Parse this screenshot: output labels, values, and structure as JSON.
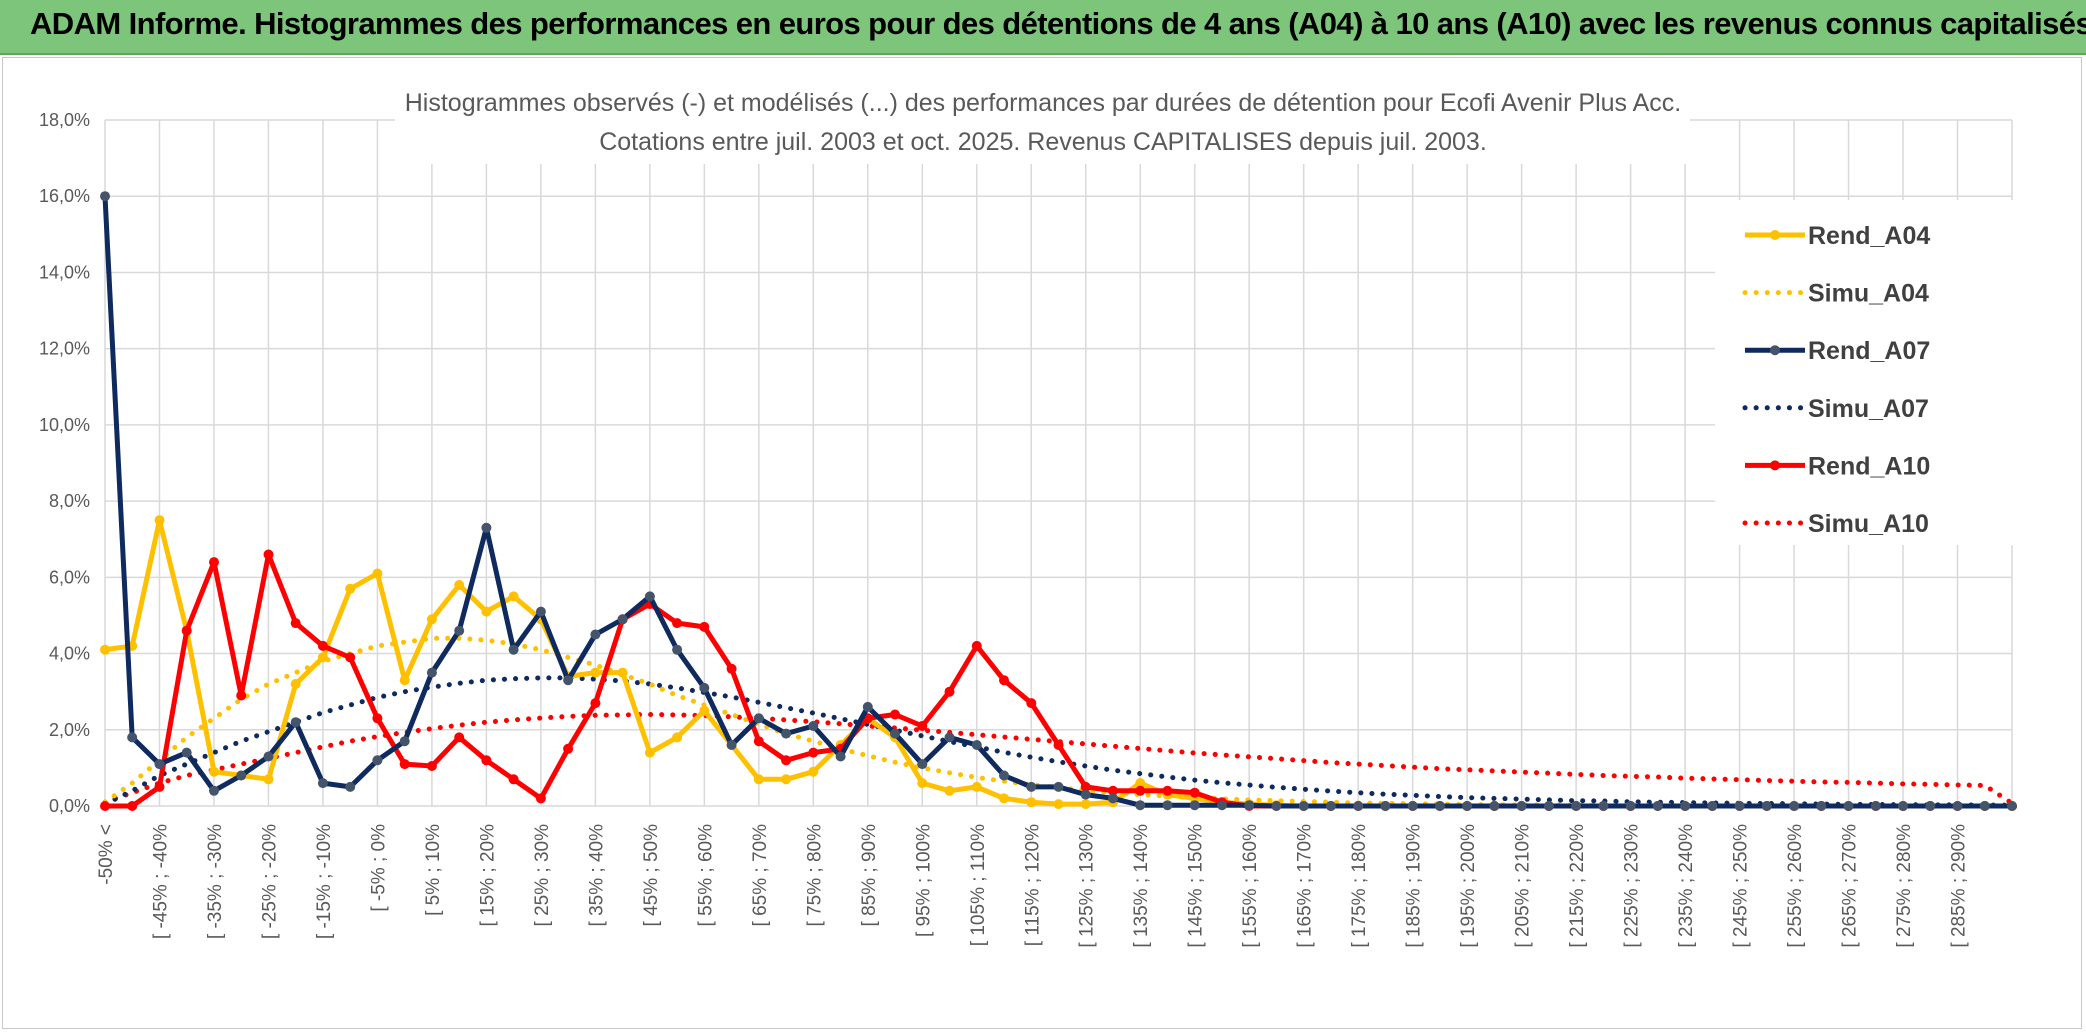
{
  "banner": {
    "title": "ADAM Informe. Histogrammes des performances en euros pour des détentions de 4 ans (A04) à 10 ans (A10) avec les revenus connus capitalisés"
  },
  "colors": {
    "banner_bg": "#7cc57a",
    "A04": "#ffc000",
    "A07": "#0e2a5f",
    "A07_marker": "#44546a",
    "A10": "#ff0000",
    "grid": "#d9d9d9"
  },
  "chart_data": {
    "type": "line",
    "title": "Histogrammes observés (-) et modélisés (...) des performances par durées de détention pour Ecofi Avenir Plus Acc.",
    "subtitle": "Cotations entre juil. 2003 et oct. 2025. Revenus CAPITALISES depuis juil. 2003.",
    "xlabel": "",
    "ylabel": "",
    "ylim": [
      0,
      18
    ],
    "y_ticks": [
      "0,0%",
      "2,0%",
      "4,0%",
      "6,0%",
      "8,0%",
      "10,0%",
      "12,0%",
      "14,0%",
      "16,0%",
      "18,0%"
    ],
    "grid": true,
    "legend_position": "top-right",
    "categories": [
      "-50% <",
      "[ -50% ; -45%",
      "[ -45% ; -40%",
      "[ -40% ; -35%",
      "[ -35% ; -30%",
      "[ -30% ; -25%",
      "[ -25% ; -20%",
      "[ -20% ; -15%",
      "[ -15% ; -10%",
      "[ -10% ; -5%",
      "[ -5% ; 0%",
      "[ 0% ; 5%",
      "[ 5% ; 10%",
      "[ 10% ; 15%",
      "[ 15% ; 20%",
      "[ 20% ; 25%",
      "[ 25% ; 30%",
      "[ 30% ; 35%",
      "[ 35% ; 40%",
      "[ 40% ; 45%",
      "[ 45% ; 50%",
      "[ 50% ; 55%",
      "[ 55% ; 60%",
      "[ 60% ; 65%",
      "[ 65% ; 70%",
      "[ 70% ; 75%",
      "[ 75% ; 80%",
      "[ 80% ; 85%",
      "[ 85% ; 90%",
      "[ 90% ; 95%",
      "[ 95% ; 100%",
      "[ 100% ; 105%",
      "[ 105% ; 110%",
      "[ 110% ; 115%",
      "[ 115% ; 120%",
      "[ 120% ; 125%",
      "[ 125% ; 130%",
      "[ 130% ; 135%",
      "[ 135% ; 140%",
      "[ 140% ; 145%",
      "[ 145% ; 150%",
      "[ 150% ; 155%",
      "[ 155% ; 160%",
      "[ 160% ; 165%",
      "[ 165% ; 170%",
      "[ 170% ; 175%",
      "[ 175% ; 180%",
      "[ 180% ; 185%",
      "[ 185% ; 190%",
      "[ 190% ; 195%",
      "[ 195% ; 200%",
      "[ 200% ; 205%",
      "[ 205% ; 210%",
      "[ 210% ; 215%",
      "[ 215% ; 220%",
      "[ 220% ; 225%",
      "[ 225% ; 230%",
      "[ 230% ; 235%",
      "[ 235% ; 240%",
      "[ 240% ; 245%",
      "[ 245% ; 250%",
      "[ 250% ; 255%",
      "[ 255% ; 260%",
      "[ 260% ; 265%",
      "[ 265% ; 270%",
      "[ 270% ; 275%",
      "[ 275% ; 280%",
      "[ 280% ; 285%",
      "[ 285% ; 290%",
      "[ 290% ; 295%",
      "[ 295% ; 300%"
    ],
    "x_labels_shown": [
      "-50% <",
      "[ -45% ; -40%",
      "[ -35% ; -30%",
      "[ -25% ; -20%",
      "[ -15% ; -10%",
      "[ -5% ; 0%",
      "[ 5% ; 10%",
      "[ 15% ; 20%",
      "[ 25% ; 30%",
      "[ 35% ; 40%",
      "[ 45% ; 50%",
      "[ 55% ; 60%",
      "[ 65% ; 70%",
      "[ 75% ; 80%",
      "[ 85% ; 90%",
      "[ 95% ; 100%",
      "[ 105% ; 110%",
      "[ 115% ; 120%",
      "[ 125% ; 130%",
      "[ 135% ; 140%",
      "[ 145% ; 150%",
      "[ 155% ; 160%",
      "[ 165% ; 170%",
      "[ 175% ; 180%",
      "[ 185% ; 190%",
      "[ 195% ; 200%",
      "[ 205% ; 210%",
      "[ 215% ; 220%",
      "[ 225% ; 230%",
      "[ 235% ; 240%",
      "[ 245% ; 250%",
      "[ 255% ; 260%",
      "[ 265% ; 270%",
      "[ 275% ; 280%",
      "[ 285% ; 290%"
    ],
    "series": [
      {
        "name": "Rend_A04",
        "style": "solid",
        "color": "#ffc000",
        "values": [
          4.1,
          4.2,
          7.5,
          4.6,
          0.9,
          0.8,
          0.7,
          3.2,
          3.9,
          5.7,
          6.1,
          3.3,
          4.9,
          5.8,
          5.1,
          5.5,
          4.9,
          3.4,
          3.5,
          3.5,
          1.4,
          1.8,
          2.5,
          1.6,
          0.7,
          0.7,
          0.9,
          1.6,
          2.3,
          1.8,
          0.6,
          0.4,
          0.5,
          0.2,
          0.1,
          0.05,
          0.05,
          0.1,
          0.6,
          0.3,
          0.2,
          0.1,
          0.05,
          0.02,
          0,
          0,
          0,
          0,
          0,
          0,
          0,
          0,
          0,
          0,
          0,
          0,
          0,
          0,
          0,
          0,
          0,
          0,
          0,
          0,
          0,
          0,
          0,
          0,
          0,
          0,
          0
        ]
      },
      {
        "name": "Simu_A04",
        "style": "dotted",
        "color": "#ffc000",
        "values": [
          0.1,
          0.6,
          1.2,
          1.8,
          2.3,
          2.8,
          3.2,
          3.5,
          3.8,
          4.0,
          4.2,
          4.3,
          4.4,
          4.4,
          4.35,
          4.25,
          4.1,
          3.9,
          3.7,
          3.45,
          3.2,
          2.9,
          2.65,
          2.4,
          2.15,
          1.9,
          1.7,
          1.5,
          1.32,
          1.15,
          1.0,
          0.87,
          0.75,
          0.65,
          0.56,
          0.48,
          0.41,
          0.35,
          0.3,
          0.26,
          0.22,
          0.19,
          0.16,
          0.14,
          0.12,
          0.1,
          0.08,
          0.07,
          0.06,
          0.05,
          0.04,
          0.035,
          0.03,
          0.025,
          0.02,
          0.017,
          0.014,
          0.012,
          0.01,
          0.008,
          0.007,
          0.006,
          0.005,
          0.004,
          0.003,
          0.003,
          0.002,
          0.002,
          0.002,
          0.001,
          0.001
        ]
      },
      {
        "name": "Rend_A07",
        "style": "solid",
        "color": "#0e2a5f",
        "values": [
          16.0,
          1.8,
          1.1,
          1.4,
          0.4,
          0.8,
          1.3,
          2.2,
          0.6,
          0.5,
          1.2,
          1.7,
          3.5,
          4.6,
          7.3,
          4.1,
          5.1,
          3.3,
          4.5,
          4.9,
          5.5,
          4.1,
          3.1,
          1.6,
          2.3,
          1.9,
          2.1,
          1.3,
          2.6,
          1.9,
          1.1,
          1.8,
          1.6,
          0.8,
          0.5,
          0.5,
          0.3,
          0.2,
          0.02,
          0.02,
          0.02,
          0.02,
          0.02,
          0,
          0,
          0,
          0,
          0,
          0,
          0,
          0,
          0,
          0,
          0,
          0,
          0,
          0,
          0,
          0,
          0,
          0,
          0,
          0,
          0,
          0,
          0,
          0,
          0,
          0,
          0,
          0
        ]
      },
      {
        "name": "Simu_A07",
        "style": "dotted",
        "color": "#0e2a5f",
        "values": [
          0.05,
          0.4,
          0.8,
          1.1,
          1.4,
          1.7,
          1.95,
          2.2,
          2.45,
          2.65,
          2.85,
          3.0,
          3.12,
          3.22,
          3.3,
          3.34,
          3.36,
          3.36,
          3.33,
          3.28,
          3.2,
          3.1,
          2.98,
          2.86,
          2.72,
          2.58,
          2.44,
          2.29,
          2.14,
          1.99,
          1.84,
          1.69,
          1.55,
          1.41,
          1.28,
          1.16,
          1.05,
          0.94,
          0.85,
          0.76,
          0.68,
          0.61,
          0.55,
          0.49,
          0.44,
          0.39,
          0.35,
          0.31,
          0.28,
          0.25,
          0.22,
          0.2,
          0.18,
          0.16,
          0.14,
          0.13,
          0.11,
          0.1,
          0.09,
          0.08,
          0.07,
          0.065,
          0.06,
          0.05,
          0.045,
          0.04,
          0.035,
          0.03,
          0.03,
          0.025,
          0.02
        ]
      },
      {
        "name": "Rend_A10",
        "style": "solid",
        "color": "#ff0000",
        "values": [
          0.0,
          0.0,
          0.5,
          4.6,
          6.4,
          2.9,
          6.6,
          4.8,
          4.2,
          3.9,
          2.3,
          1.1,
          1.05,
          1.8,
          1.2,
          0.7,
          0.2,
          1.5,
          2.7,
          4.9,
          5.3,
          4.8,
          4.7,
          3.6,
          1.7,
          1.2,
          1.4,
          1.5,
          2.3,
          2.4,
          2.1,
          3.0,
          4.2,
          3.3,
          2.7,
          1.6,
          0.5,
          0.4,
          0.4,
          0.4,
          0.35,
          0.1,
          0,
          0,
          0,
          0,
          0,
          0,
          0,
          0,
          0,
          0,
          0,
          0,
          0,
          0,
          0,
          0,
          0,
          0,
          0,
          0,
          0,
          0,
          0,
          0,
          0,
          0,
          0,
          0,
          0
        ]
      },
      {
        "name": "Simu_A10",
        "style": "dotted",
        "color": "#ff0000",
        "values": [
          0.1,
          0.35,
          0.6,
          0.8,
          0.95,
          1.1,
          1.25,
          1.4,
          1.55,
          1.7,
          1.82,
          1.93,
          2.03,
          2.12,
          2.2,
          2.26,
          2.31,
          2.35,
          2.38,
          2.39,
          2.4,
          2.39,
          2.37,
          2.34,
          2.3,
          2.26,
          2.21,
          2.16,
          2.1,
          2.05,
          1.99,
          1.93,
          1.87,
          1.81,
          1.75,
          1.69,
          1.63,
          1.57,
          1.51,
          1.45,
          1.39,
          1.34,
          1.29,
          1.24,
          1.19,
          1.14,
          1.1,
          1.06,
          1.02,
          0.98,
          0.95,
          0.92,
          0.89,
          0.86,
          0.83,
          0.8,
          0.78,
          0.76,
          0.73,
          0.71,
          0.69,
          0.67,
          0.65,
          0.63,
          0.62,
          0.6,
          0.58,
          0.57,
          0.55,
          0.54,
          0.07
        ]
      }
    ]
  }
}
